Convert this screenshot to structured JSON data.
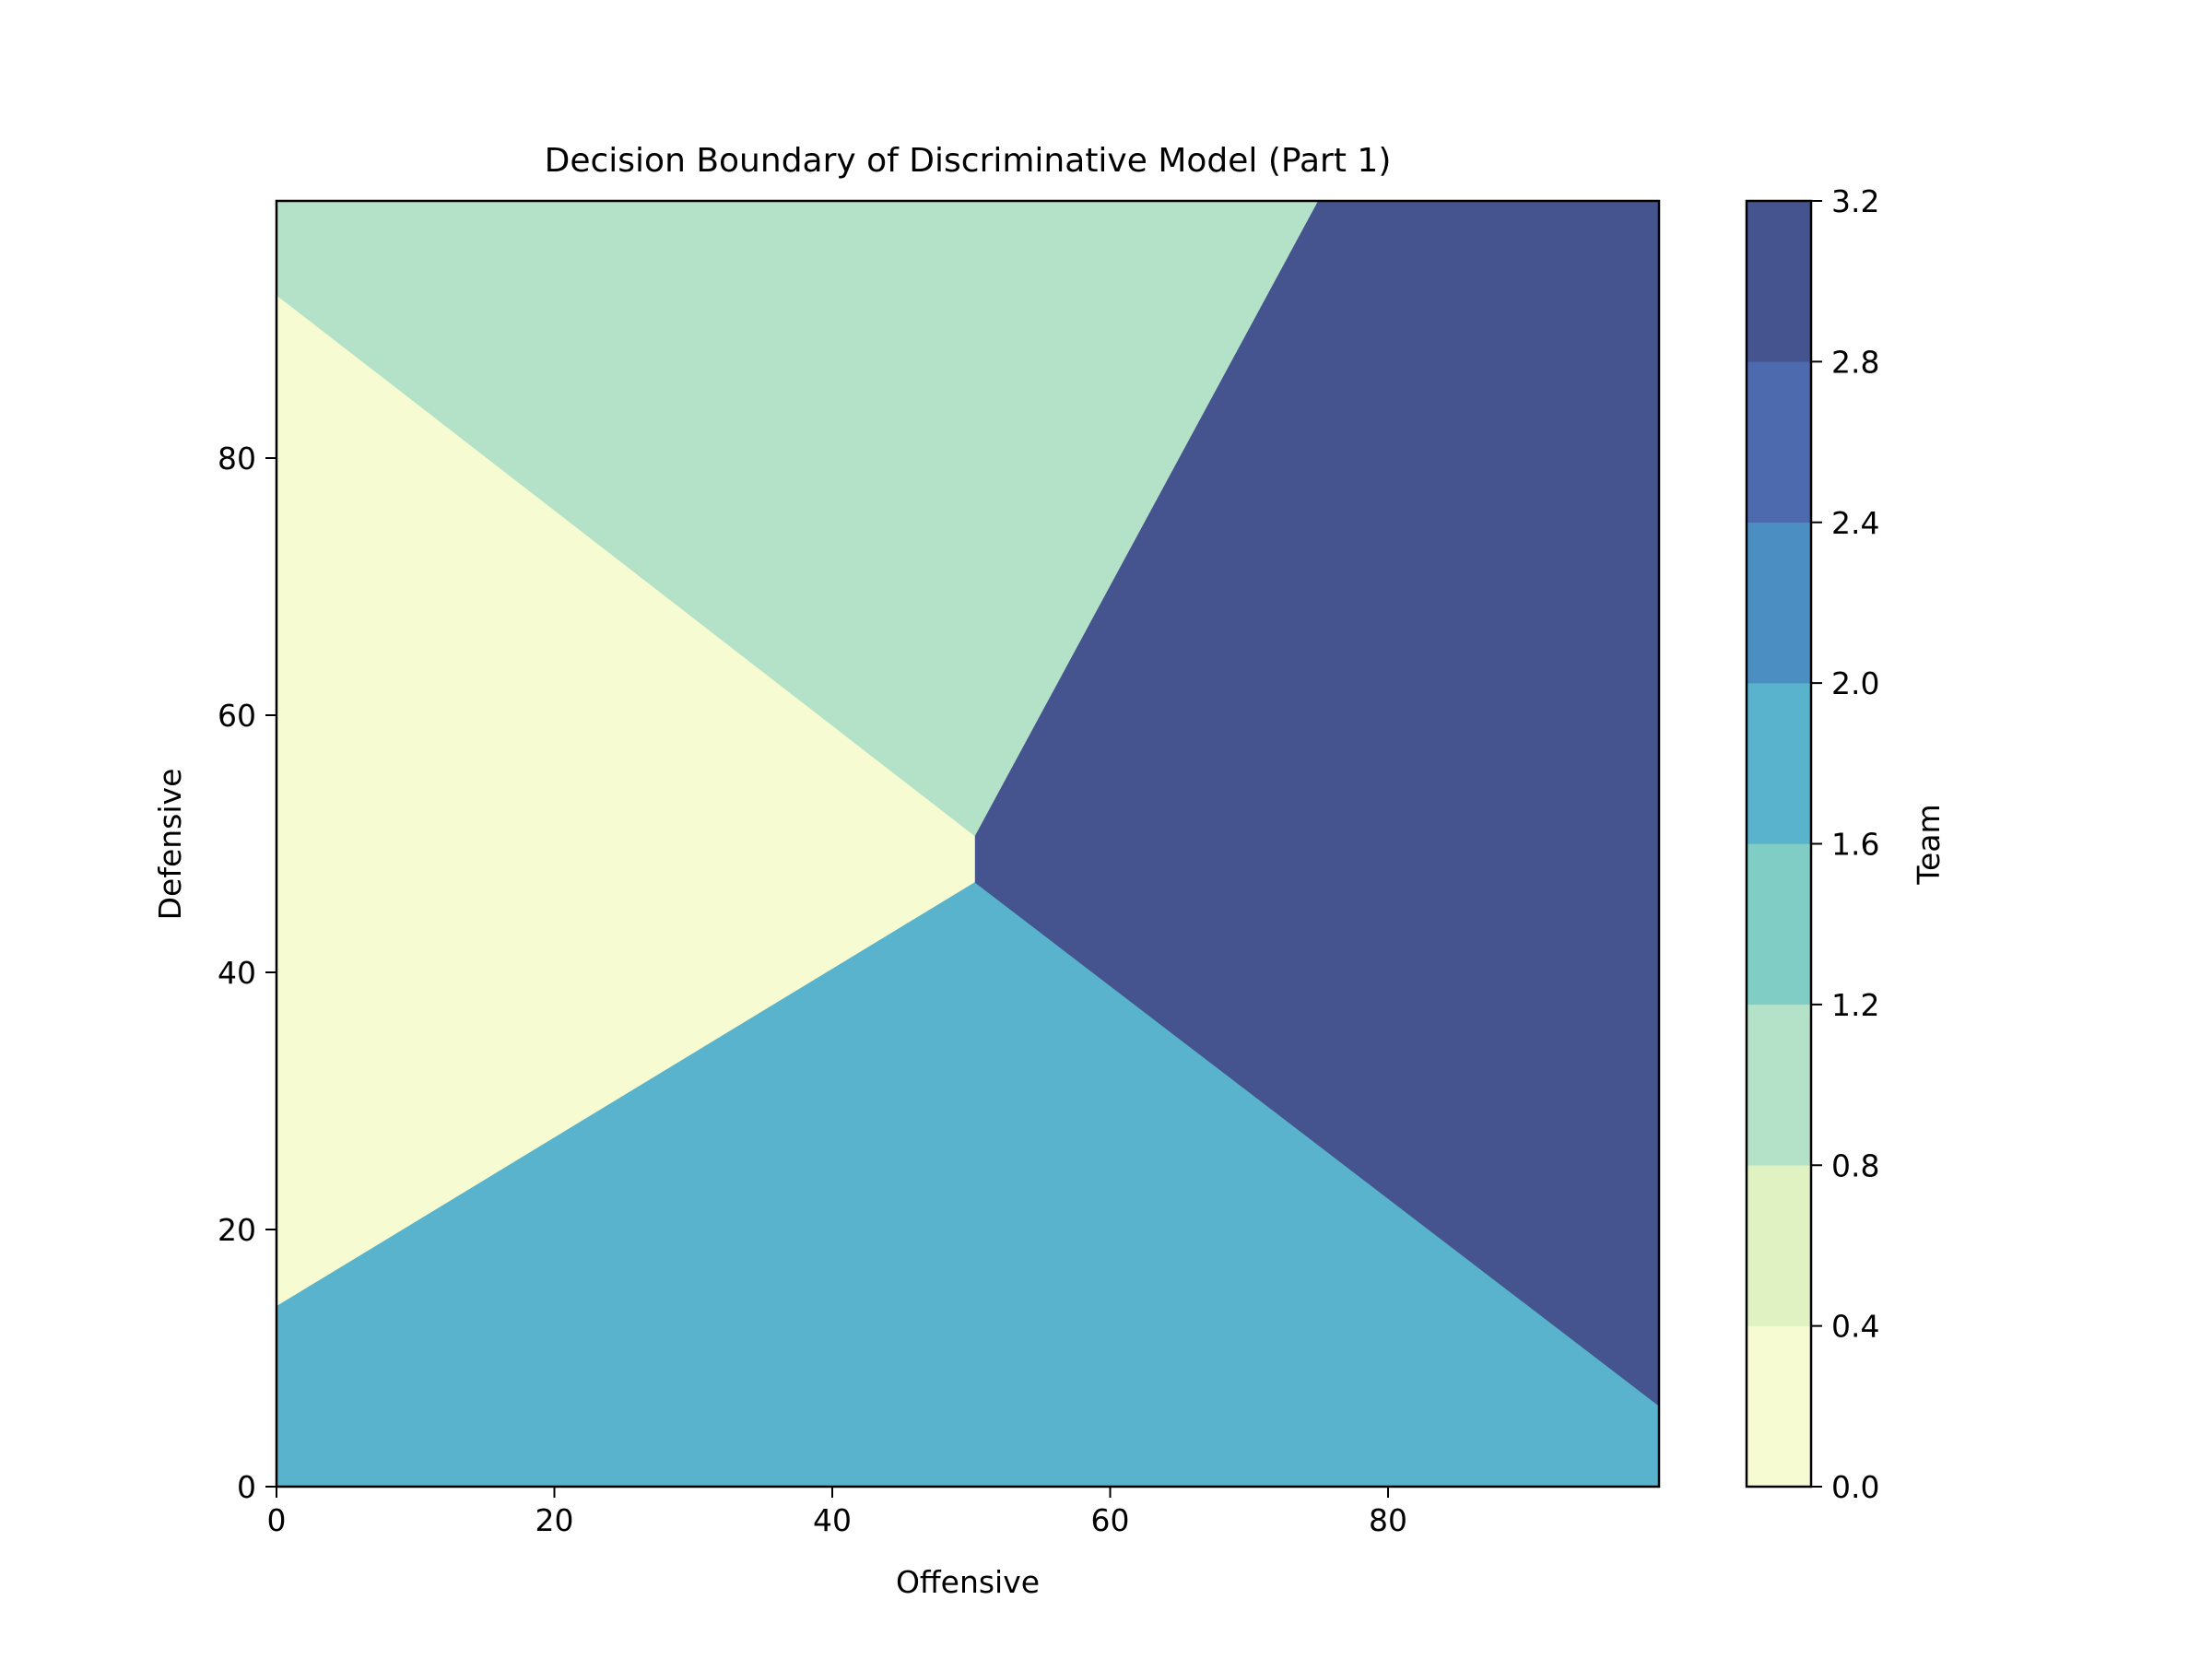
{
  "chart_data": {
    "type": "contourf",
    "title": "Decision Boundary of Discriminative Model (Part 1)",
    "xlabel": "Offensive",
    "ylabel": "Defensive",
    "xlim": [
      0,
      99.5
    ],
    "ylim": [
      0,
      100
    ],
    "xticks": [
      0,
      20,
      40,
      60,
      80
    ],
    "yticks": [
      0,
      20,
      40,
      60,
      80
    ],
    "grid": false,
    "regions": [
      {
        "class": 0,
        "color": "#f7fbd2",
        "polygon": [
          [
            0,
            14
          ],
          [
            50.3,
            47
          ],
          [
            50.3,
            50.6
          ],
          [
            0,
            92.7
          ]
        ]
      },
      {
        "class": 1,
        "color": "#b4e2c8",
        "polygon": [
          [
            0,
            92.7
          ],
          [
            50.3,
            50.6
          ],
          [
            75,
            100
          ],
          [
            0,
            100
          ]
        ]
      },
      {
        "class": 2,
        "color": "#59b3cd",
        "polygon": [
          [
            0,
            0
          ],
          [
            99.5,
            0
          ],
          [
            99.5,
            6.3
          ],
          [
            50.3,
            47
          ],
          [
            0,
            14
          ]
        ]
      },
      {
        "class": 3,
        "color": "#45548f",
        "polygon": [
          [
            50.3,
            50.6
          ],
          [
            50.3,
            47
          ],
          [
            99.5,
            6.3
          ],
          [
            99.5,
            100
          ],
          [
            75,
            100
          ]
        ]
      }
    ],
    "colorbar": {
      "label": "Team",
      "levels": [
        0.0,
        0.4,
        0.8,
        1.2,
        1.6,
        2.0,
        2.4,
        2.8,
        3.2
      ],
      "tick_labels": [
        "0.0",
        "0.4",
        "0.8",
        "1.2",
        "1.6",
        "2.0",
        "2.4",
        "2.8",
        "3.2"
      ],
      "colors": [
        "#f7fbd2",
        "#e0f2c2",
        "#b4e2c8",
        "#80cdc6",
        "#59b3cd",
        "#4b8fc2",
        "#4d6aae",
        "#45548f"
      ]
    }
  }
}
